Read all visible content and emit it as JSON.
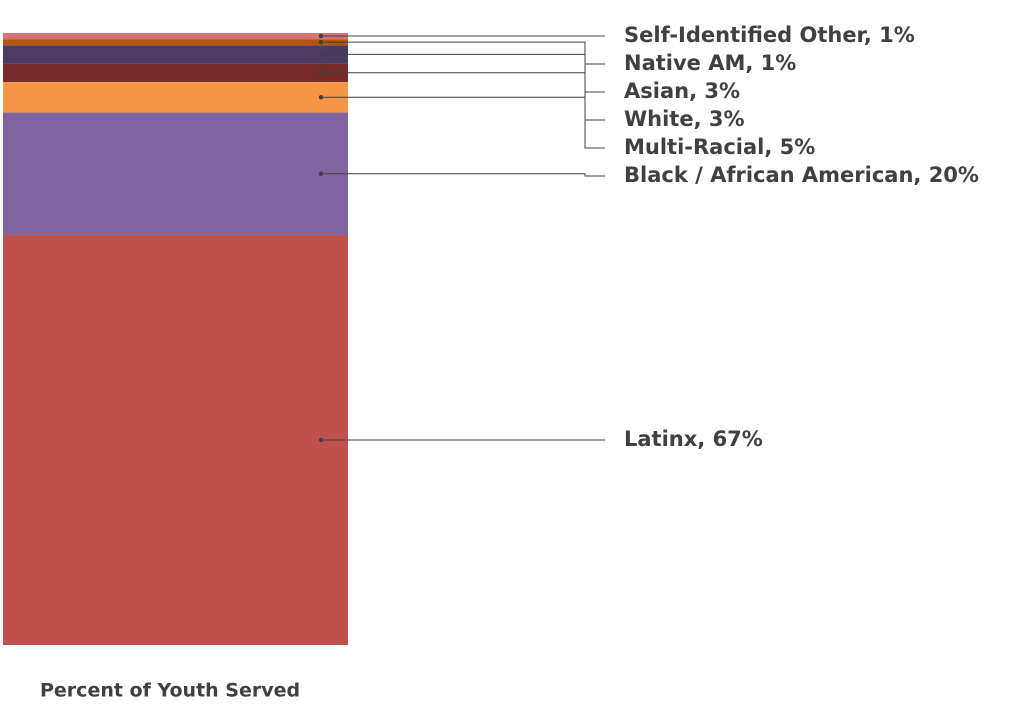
{
  "chart_data": {
    "type": "bar",
    "stacked": true,
    "categories": [
      "Percent of Youth Served"
    ],
    "ylim": [
      0,
      100
    ],
    "series": [
      {
        "color": "#c0504d",
        "values": [
          67
        ],
        "value_labels": [
          "Latinx, 67%"
        ]
      },
      {
        "color": "#8064a2",
        "values": [
          20
        ],
        "value_labels": [
          "Black / African American, 20%"
        ]
      },
      {
        "color": "#f79646",
        "values": [
          5
        ],
        "value_labels": [
          "Multi-Racial, 5%"
        ]
      },
      {
        "color": "#772c2a",
        "values": [
          3
        ],
        "value_labels": [
          "White, 3%"
        ]
      },
      {
        "color": "#4b3b62",
        "values": [
          3
        ],
        "value_labels": [
          "Asian, 3%"
        ]
      },
      {
        "color": "#b65708",
        "values": [
          1
        ],
        "value_labels": [
          "Native AM, 1%"
        ]
      },
      {
        "color": "#d07574",
        "values": [
          1
        ],
        "value_labels": [
          "Self-Identified Other, 1%"
        ]
      }
    ]
  }
}
